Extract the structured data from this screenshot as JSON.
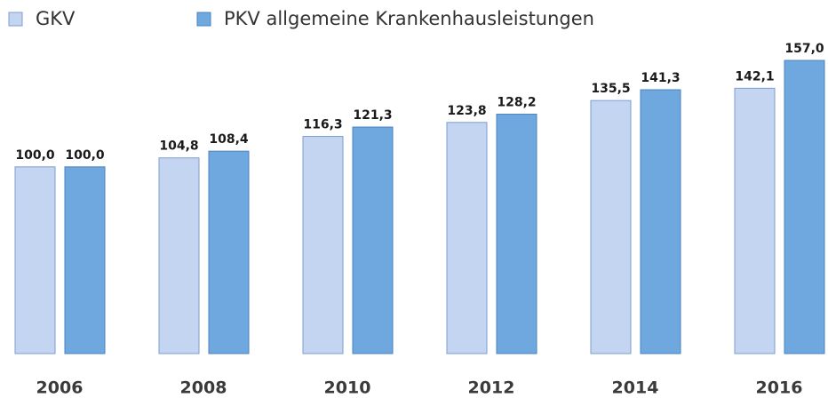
{
  "chart_data": {
    "type": "bar",
    "categories": [
      "2006",
      "2008",
      "2010",
      "2012",
      "2014",
      "2016"
    ],
    "series": [
      {
        "name": "GKV",
        "color": "#c3d5f0",
        "values": [
          100.0,
          104.8,
          116.3,
          123.8,
          135.5,
          142.1
        ],
        "value_labels": [
          "100,0",
          "104,8",
          "116,3",
          "123,8",
          "135,5",
          "142,1"
        ]
      },
      {
        "name": "PKV allgemeine Krankenhausleistungen",
        "color": "#6ea8de",
        "values": [
          100.0,
          108.4,
          121.3,
          128.2,
          141.3,
          157.0
        ],
        "value_labels": [
          "100,0",
          "108,4",
          "121,3",
          "128,2",
          "141,3",
          "157,0"
        ]
      }
    ]
  }
}
